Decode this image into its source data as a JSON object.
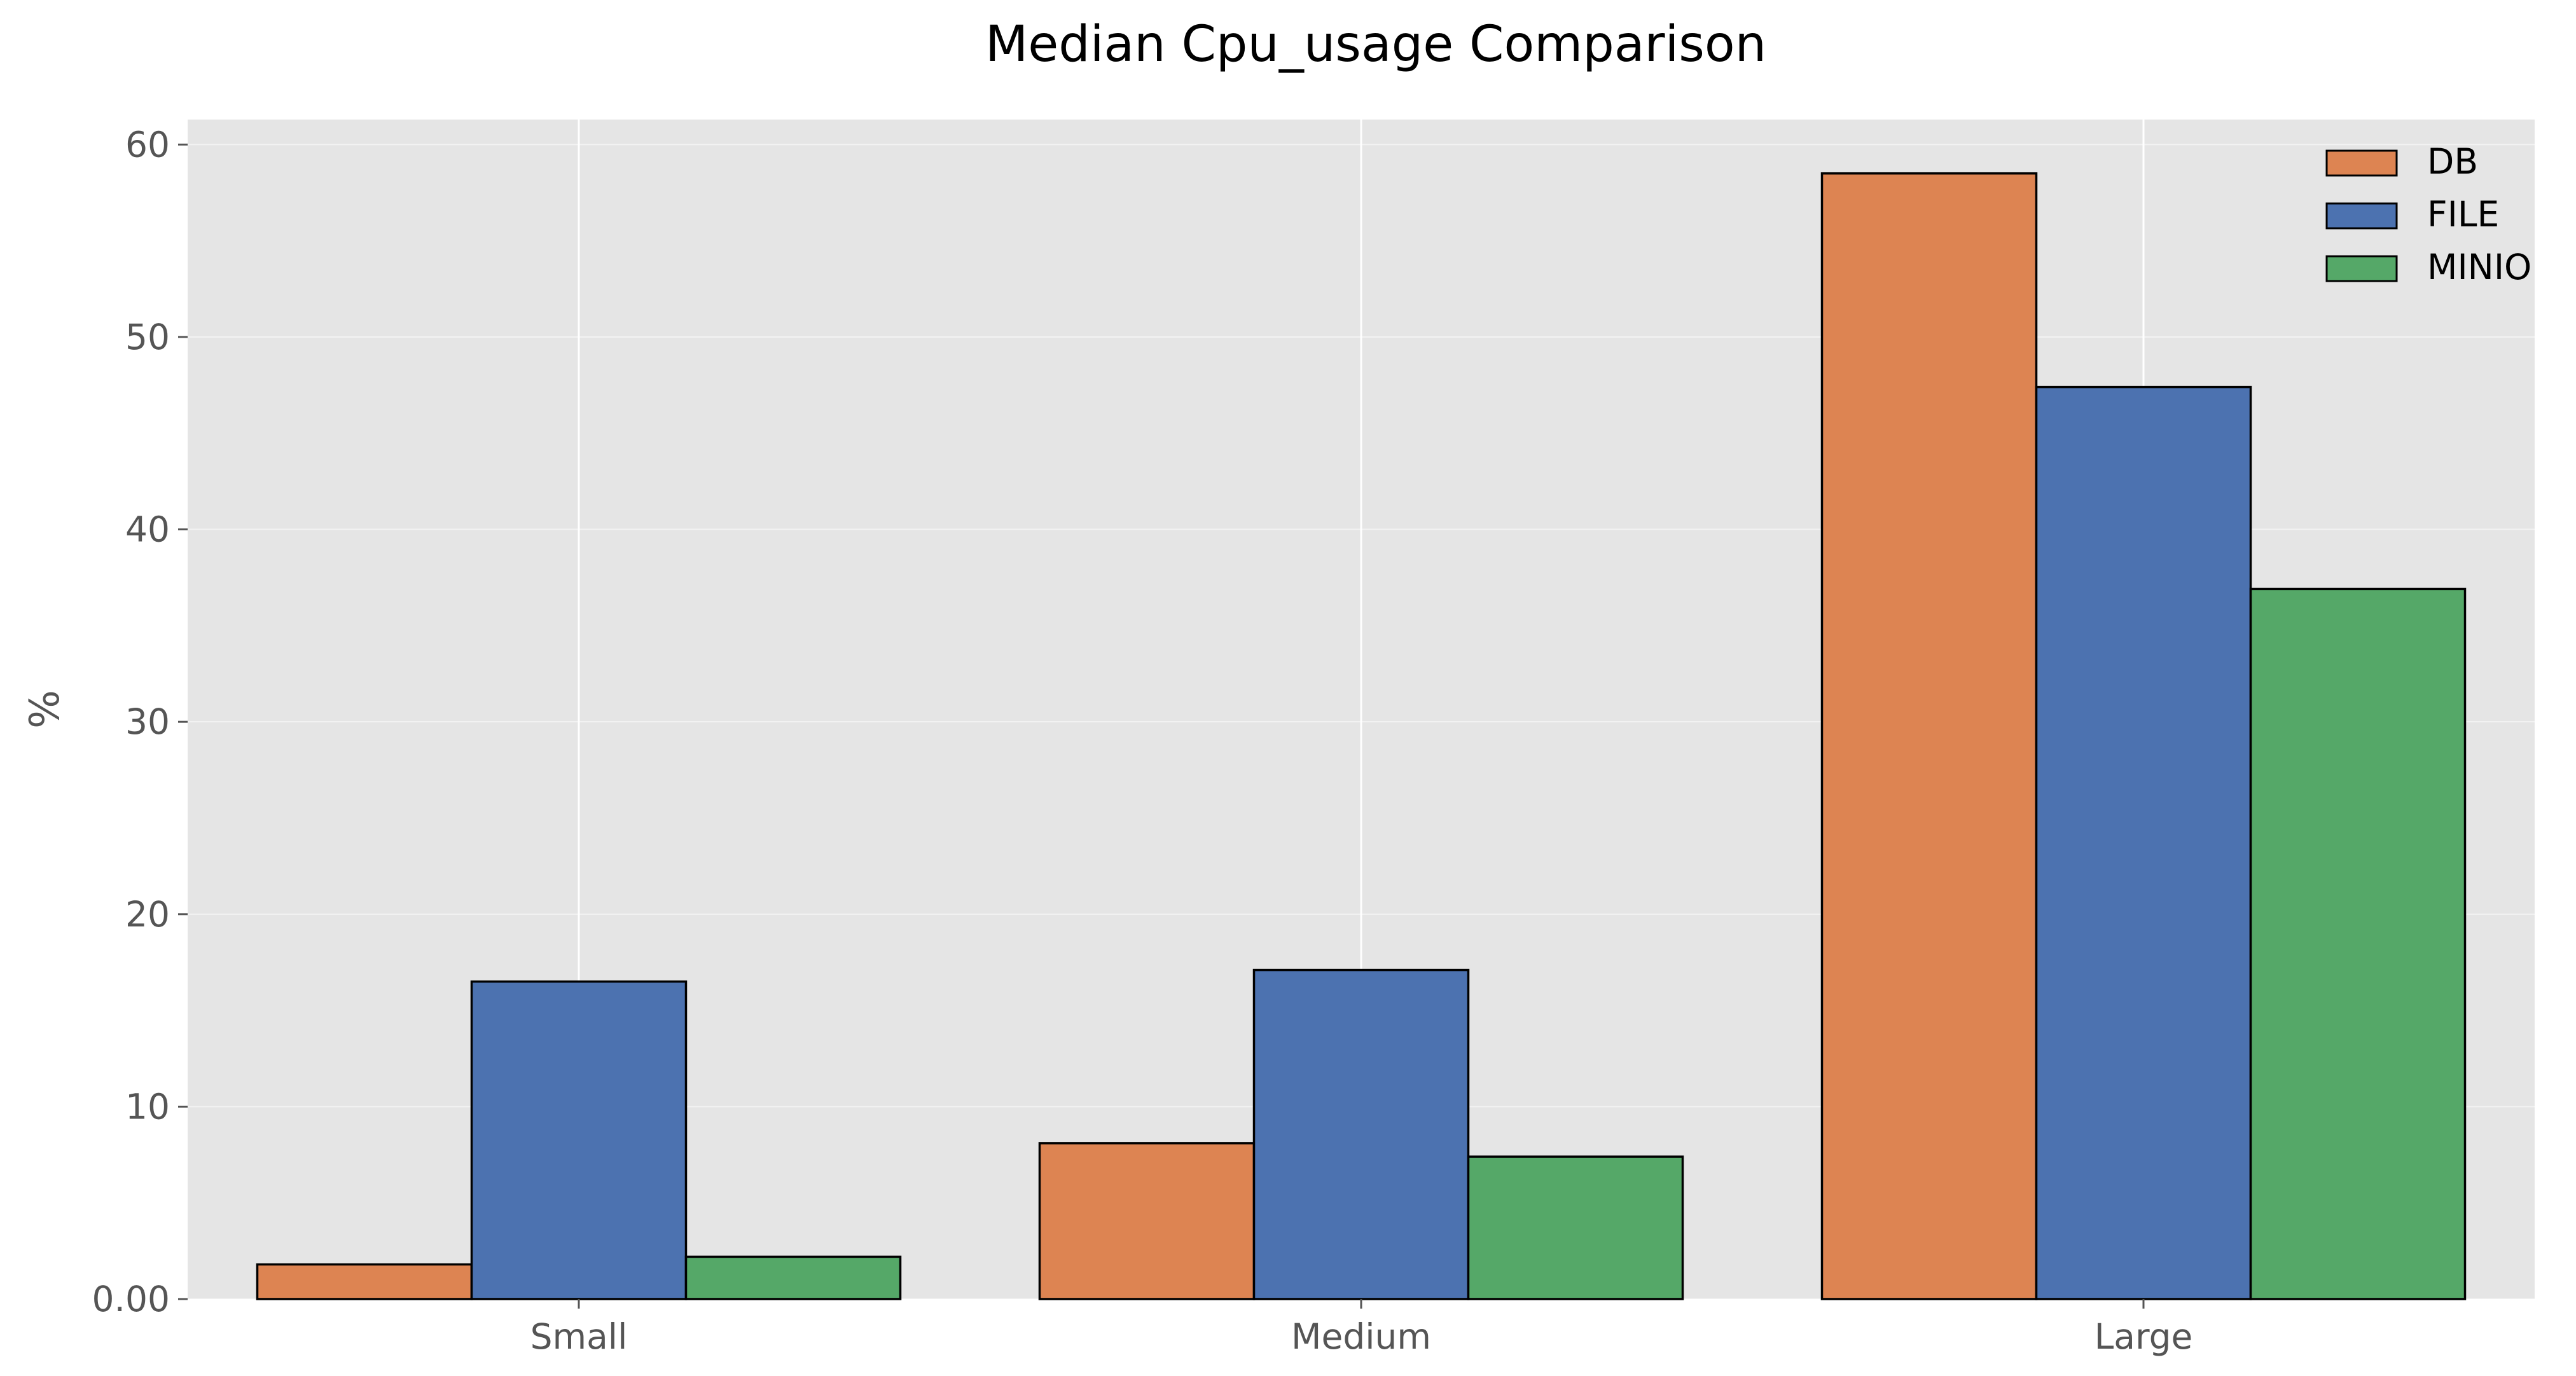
{
  "chart_data": {
    "type": "bar",
    "title": "Median Cpu_usage Comparison",
    "xlabel": "",
    "ylabel": "%",
    "categories": [
      "Small",
      "Medium",
      "Large"
    ],
    "series": [
      {
        "name": "DB",
        "color": "#dd8452",
        "values": [
          1.8,
          8.1,
          58.5
        ]
      },
      {
        "name": "FILE",
        "color": "#4c72b0",
        "values": [
          16.5,
          17.1,
          47.4
        ]
      },
      {
        "name": "MINIO",
        "color": "#55a868",
        "values": [
          2.2,
          7.4,
          36.9
        ]
      }
    ],
    "ylim": [
      0,
      61.3
    ],
    "yticks": [
      "0.00",
      "10",
      "20",
      "30",
      "40",
      "50",
      "60"
    ],
    "ytick_values": [
      0,
      10,
      20,
      30,
      40,
      50,
      60
    ],
    "grid": true,
    "legend_position": "top-right",
    "plot_background": "#e5e5e5",
    "grid_color": "#ffffff",
    "bar_edge_color": "#000000"
  }
}
